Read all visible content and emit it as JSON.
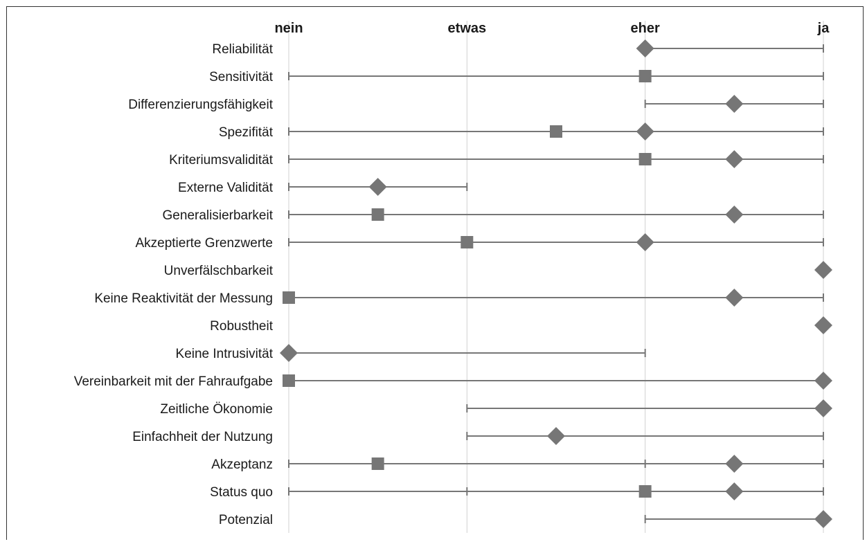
{
  "chart_data": {
    "type": "range-dot",
    "x_tick_labels": [
      "nein",
      "etwas",
      "eher",
      "ja"
    ],
    "xlim": [
      0,
      3
    ],
    "grid": "vertical",
    "marker_color": "#767676",
    "line_color": "#767676",
    "grid_color": "#d0d0d0",
    "rows": [
      {
        "label": "Reliabilität",
        "range": [
          2,
          3
        ],
        "square": null,
        "diamond": 2,
        "ticks": [
          3
        ]
      },
      {
        "label": "Sensitivität",
        "range": [
          0,
          3
        ],
        "square": 2,
        "diamond": null,
        "ticks": [
          0,
          3
        ]
      },
      {
        "label": "Differenzierungsfähigkeit",
        "range": [
          2,
          3
        ],
        "square": null,
        "diamond": 2.5,
        "ticks": [
          2,
          3
        ]
      },
      {
        "label": "Spezifität",
        "range": [
          0,
          3
        ],
        "square": 1.5,
        "diamond": 2,
        "ticks": [
          0,
          3
        ]
      },
      {
        "label": "Kriteriumsvalidität",
        "range": [
          0,
          3
        ],
        "square": 2,
        "diamond": 2.5,
        "ticks": [
          0,
          3
        ]
      },
      {
        "label": "Externe Validität",
        "range": [
          0,
          1
        ],
        "square": null,
        "diamond": 0.5,
        "ticks": [
          0,
          1
        ]
      },
      {
        "label": "Generalisierbarkeit",
        "range": [
          0,
          3
        ],
        "square": 0.5,
        "diamond": 2.5,
        "ticks": [
          0,
          3
        ]
      },
      {
        "label": "Akzeptierte Grenzwerte",
        "range": [
          0,
          3
        ],
        "square": 1,
        "diamond": 2,
        "ticks": [
          0,
          3
        ]
      },
      {
        "label": "Unverfälschbarkeit",
        "range": null,
        "square": null,
        "diamond": 3,
        "ticks": []
      },
      {
        "label": "Keine Reaktivität der Messung",
        "range": [
          0,
          3
        ],
        "square": 0,
        "diamond": 2.5,
        "ticks": [
          3
        ]
      },
      {
        "label": "Robustheit",
        "range": null,
        "square": null,
        "diamond": 3,
        "ticks": []
      },
      {
        "label": "Keine Intrusivität",
        "range": [
          0,
          2
        ],
        "square": null,
        "diamond": 0,
        "ticks": [
          2
        ]
      },
      {
        "label": "Vereinbarkeit mit der Fahraufgabe",
        "range": [
          0,
          3
        ],
        "square": 0,
        "diamond": 3,
        "ticks": []
      },
      {
        "label": "Zeitliche Ökonomie",
        "range": [
          1,
          3
        ],
        "square": null,
        "diamond": 3,
        "ticks": [
          1
        ]
      },
      {
        "label": "Einfachheit der Nutzung",
        "range": [
          1,
          3
        ],
        "square": null,
        "diamond": 1.5,
        "ticks": [
          1,
          3
        ]
      },
      {
        "label": "Akzeptanz",
        "range": [
          0,
          3
        ],
        "square": 0.5,
        "diamond": 2.5,
        "ticks": [
          0,
          2,
          3
        ]
      },
      {
        "label": "Status quo",
        "range": [
          0,
          3
        ],
        "square": 2,
        "diamond": 2.5,
        "ticks": [
          0,
          1,
          3
        ]
      },
      {
        "label": "Potenzial",
        "range": [
          2,
          3
        ],
        "square": null,
        "diamond": 3,
        "ticks": [
          2
        ]
      }
    ]
  }
}
